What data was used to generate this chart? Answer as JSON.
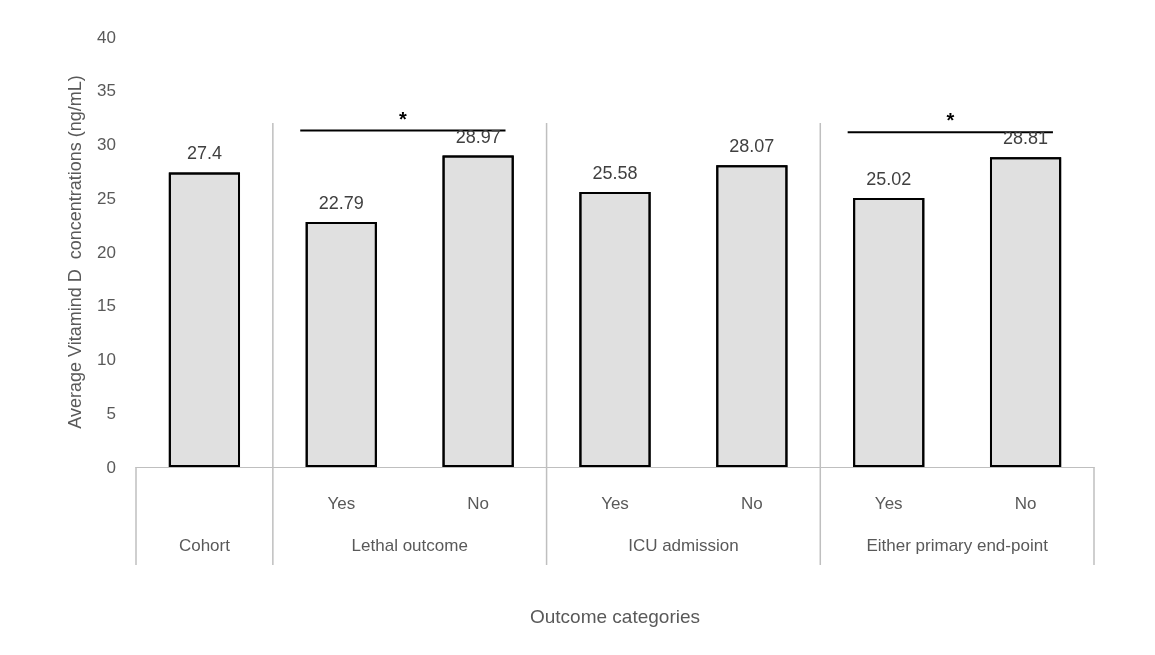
{
  "chart_data": {
    "type": "bar",
    "categories": [
      null,
      "Yes",
      "No",
      "Yes",
      "No",
      "Yes",
      "No"
    ],
    "values": [
      27.4,
      22.79,
      28.97,
      25.58,
      28.07,
      25.02,
      28.81
    ],
    "color": "#e0e0e0",
    "data_labels": true,
    "ylim": [
      0,
      40
    ],
    "yticks": [
      0,
      5,
      10,
      15,
      20,
      25,
      30,
      35,
      40
    ],
    "grid": false,
    "xlabel": "Outcome categories",
    "ylabel": "Average Vitamind D  concentrations (ng/mL)",
    "annotations": [
      "*",
      "*",
      "Cohort",
      "Lethal outcome",
      "ICU admission",
      "Either primary end-point"
    ]
  }
}
